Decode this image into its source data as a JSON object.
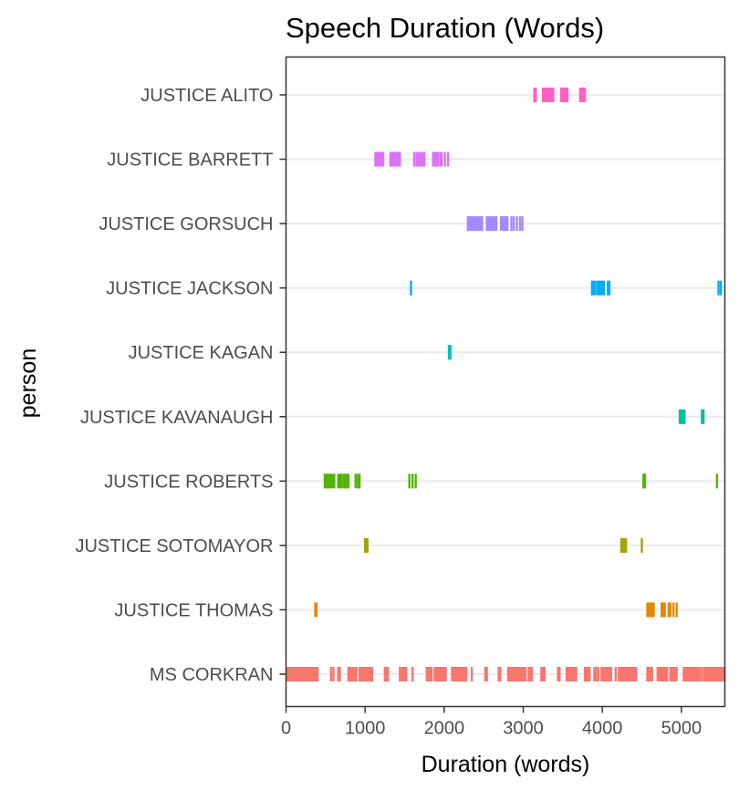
{
  "chart_data": {
    "type": "barcode",
    "title": "Speech Duration (Words)",
    "xlabel": "Duration (words)",
    "ylabel": "person",
    "xlim": [
      0,
      5550
    ],
    "x_ticks": [
      0,
      1000,
      2000,
      3000,
      4000,
      5000
    ],
    "x_tick_labels": [
      "0",
      "1000",
      "2000",
      "3000",
      "4000",
      "5000"
    ],
    "grid": "horizontal major",
    "legend": "none",
    "categories": [
      "JUSTICE ALITO",
      "JUSTICE BARRETT",
      "JUSTICE GORSUCH",
      "JUSTICE JACKSON",
      "JUSTICE KAGAN",
      "JUSTICE KAVANAUGH",
      "JUSTICE ROBERTS",
      "JUSTICE SOTOMAYOR",
      "JUSTICE THOMAS",
      "MS CORKRAN"
    ],
    "series": [
      {
        "name": "JUSTICE ALITO",
        "color": "#FF61C3",
        "x": [
          3140,
          3160,
          3250,
          3270,
          3290,
          3310,
          3330,
          3350,
          3370,
          3380,
          3480,
          3500,
          3520,
          3540,
          3560,
          3720,
          3740,
          3760,
          3780
        ]
      },
      {
        "name": "JUSTICE BARRETT",
        "color": "#DB72FB",
        "x": [
          1130,
          1150,
          1170,
          1190,
          1210,
          1230,
          1320,
          1340,
          1360,
          1380,
          1400,
          1420,
          1440,
          1620,
          1650,
          1670,
          1690,
          1710,
          1730,
          1750,
          1860,
          1880,
          1900,
          1920,
          1950,
          1970,
          2010,
          2050
        ]
      },
      {
        "name": "JUSTICE GORSUCH",
        "color": "#A58AFF",
        "x": [
          2300,
          2320,
          2340,
          2360,
          2380,
          2400,
          2420,
          2440,
          2460,
          2480,
          2540,
          2560,
          2580,
          2600,
          2620,
          2640,
          2660,
          2720,
          2740,
          2760,
          2780,
          2800,
          2850,
          2880,
          2920,
          2960,
          2990
        ]
      },
      {
        "name": "JUSTICE JACKSON",
        "color": "#00B0F6",
        "x": [
          1580,
          3870,
          3890,
          3910,
          3940,
          3960,
          3980,
          4000,
          4020,
          4070,
          4090,
          5470,
          5500
        ]
      },
      {
        "name": "JUSTICE KAGAN",
        "color": "#00BFC4",
        "x": [
          2060,
          2070,
          2080
        ]
      },
      {
        "name": "JUSTICE KAVANAUGH",
        "color": "#00C094",
        "x": [
          4980,
          5000,
          5020,
          5040,
          5260,
          5270,
          5280
        ]
      },
      {
        "name": "JUSTICE ROBERTS",
        "color": "#53B400",
        "x": [
          490,
          510,
          530,
          550,
          570,
          590,
          610,
          660,
          680,
          700,
          730,
          750,
          770,
          790,
          880,
          910,
          930,
          1560,
          1600,
          1640,
          4520,
          4530,
          4540,
          5450
        ]
      },
      {
        "name": "JUSTICE SOTOMAYOR",
        "color": "#A3A500",
        "x": [
          1000,
          1015,
          1030,
          4240,
          4260,
          4280,
          4300,
          4500
        ]
      },
      {
        "name": "JUSTICE THOMAS",
        "color": "#E58700",
        "x": [
          370,
          385,
          4570,
          4590,
          4610,
          4630,
          4650,
          4750,
          4770,
          4790,
          4840,
          4860,
          4900,
          4940
        ]
      },
      {
        "name": "MS CORKRAN",
        "color": "#F8766D",
        "x": [
          20,
          40,
          60,
          80,
          100,
          120,
          140,
          160,
          180,
          200,
          220,
          240,
          260,
          280,
          300,
          320,
          340,
          360,
          380,
          400,
          570,
          600,
          660,
          680,
          790,
          810,
          830,
          850,
          870,
          890,
          930,
          950,
          970,
          990,
          1010,
          1030,
          1050,
          1070,
          1090,
          1250,
          1270,
          1290,
          1440,
          1460,
          1480,
          1500,
          1520,
          1600,
          1780,
          1800,
          1820,
          1840,
          1880,
          1900,
          1920,
          1940,
          1960,
          1980,
          2000,
          2020,
          2100,
          2120,
          2140,
          2160,
          2180,
          2200,
          2220,
          2240,
          2260,
          2280,
          2350,
          2520,
          2540,
          2690,
          2710,
          2810,
          2830,
          2850,
          2870,
          2890,
          2910,
          2930,
          2950,
          2970,
          2990,
          3010,
          3030,
          3070,
          3090,
          3110,
          3230,
          3250,
          3270,
          3440,
          3460,
          3550,
          3570,
          3590,
          3610,
          3630,
          3650,
          3670,
          3780,
          3800,
          3820,
          3840,
          3900,
          3920,
          3950,
          3990,
          4010,
          4030,
          4050,
          4070,
          4090,
          4110,
          4170,
          4210,
          4230,
          4250,
          4270,
          4290,
          4310,
          4330,
          4350,
          4370,
          4390,
          4410,
          4430,
          4570,
          4590,
          4610,
          4630,
          4700,
          4720,
          4740,
          4760,
          4780,
          4800,
          4820,
          4860,
          4880,
          4900,
          4920,
          4940,
          5030,
          5050,
          5070,
          5090,
          5110,
          5130,
          5150,
          5170,
          5190,
          5210,
          5230,
          5260,
          5290,
          5310,
          5330,
          5350,
          5370,
          5390,
          5410,
          5430,
          5450,
          5470,
          5490,
          5510,
          5530,
          5545
        ]
      }
    ]
  }
}
